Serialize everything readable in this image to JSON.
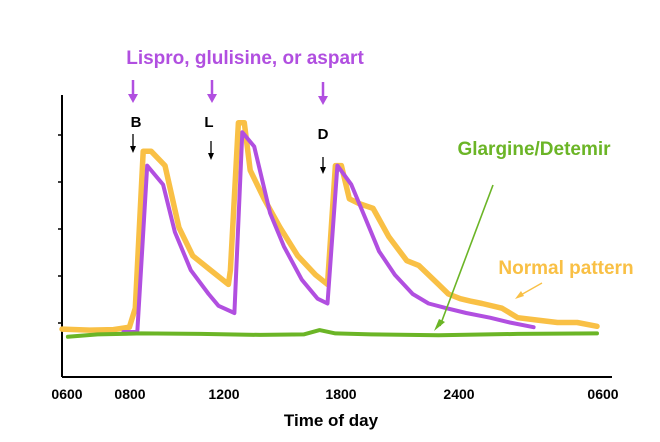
{
  "chart_data": {
    "type": "line",
    "xlabel": "Time of day",
    "ylabel": "",
    "x_ticks": [
      "0600",
      "0800",
      "1200",
      "1800",
      "2400",
      "0600"
    ],
    "meal_markers": [
      "B",
      "L",
      "D"
    ],
    "annotations": {
      "insulin_label": "Lispro, glulisine, or aspart",
      "basal_label": "Glargine/Detemir",
      "normal_label": "Normal pattern"
    },
    "colors": {
      "normal": "#F9C045",
      "rapid": "#B14FE0",
      "basal": "#6BB526",
      "axis": "#000000"
    },
    "series": [
      {
        "name": "Normal pattern",
        "color": "#F9C045",
        "points": [
          [
            0,
            0.6
          ],
          [
            0.7,
            0.4
          ],
          [
            1.3,
            0.5
          ],
          [
            1.7,
            1
          ],
          [
            1.85,
            5
          ],
          [
            2.05,
            38
          ],
          [
            2.25,
            38
          ],
          [
            2.6,
            35
          ],
          [
            2.95,
            22
          ],
          [
            3.3,
            16
          ],
          [
            3.75,
            13
          ],
          [
            4.2,
            10
          ],
          [
            4.25,
            13
          ],
          [
            4.45,
            44
          ],
          [
            4.6,
            44
          ],
          [
            4.75,
            34
          ],
          [
            5.1,
            28
          ],
          [
            5.5,
            22
          ],
          [
            5.95,
            16
          ],
          [
            6.4,
            12
          ],
          [
            6.7,
            10
          ],
          [
            6.9,
            35
          ],
          [
            7.05,
            35
          ],
          [
            7.25,
            28
          ],
          [
            7.5,
            27
          ],
          [
            7.85,
            26
          ],
          [
            8.25,
            20
          ],
          [
            8.7,
            15
          ],
          [
            9.0,
            14
          ],
          [
            9.5,
            10
          ],
          [
            9.75,
            8
          ],
          [
            10.05,
            7
          ],
          [
            10.3,
            6.5
          ],
          [
            10.6,
            6
          ],
          [
            11.1,
            5
          ],
          [
            11.5,
            3
          ],
          [
            12.0,
            2.5
          ],
          [
            12.5,
            2
          ],
          [
            13.0,
            2
          ],
          [
            13.5,
            1.2
          ]
        ]
      },
      {
        "name": "Lispro, glulisine, or aspart",
        "color": "#B14FE0",
        "points": [
          [
            1.55,
            0
          ],
          [
            1.9,
            0
          ],
          [
            2.15,
            35
          ],
          [
            2.55,
            31
          ],
          [
            2.85,
            21
          ],
          [
            3.25,
            13
          ],
          [
            3.7,
            8
          ],
          [
            3.95,
            5.5
          ],
          [
            4.35,
            4
          ],
          [
            4.55,
            42
          ],
          [
            4.85,
            39
          ],
          [
            5.25,
            25
          ],
          [
            5.6,
            18
          ],
          [
            6.05,
            11
          ],
          [
            6.45,
            7
          ],
          [
            6.7,
            6
          ],
          [
            6.95,
            35
          ],
          [
            7.3,
            31
          ],
          [
            7.65,
            24
          ],
          [
            8.0,
            17
          ],
          [
            8.4,
            12
          ],
          [
            8.85,
            8
          ],
          [
            9.25,
            6
          ],
          [
            9.7,
            5
          ],
          [
            10.2,
            4
          ],
          [
            10.8,
            3
          ],
          [
            11.3,
            2
          ],
          [
            11.9,
            1
          ]
        ]
      },
      {
        "name": "Glargine/Detemir",
        "color": "#6BB526",
        "points": [
          [
            0.15,
            -1
          ],
          [
            0.9,
            -0.5
          ],
          [
            2.0,
            -0.3
          ],
          [
            3.5,
            -0.4
          ],
          [
            5.0,
            -0.6
          ],
          [
            6.1,
            -0.5
          ],
          [
            6.5,
            0.4
          ],
          [
            6.9,
            -0.3
          ],
          [
            7.8,
            -0.5
          ],
          [
            9.5,
            -0.7
          ],
          [
            11.5,
            -0.4
          ],
          [
            13.5,
            -0.3
          ]
        ]
      }
    ]
  }
}
